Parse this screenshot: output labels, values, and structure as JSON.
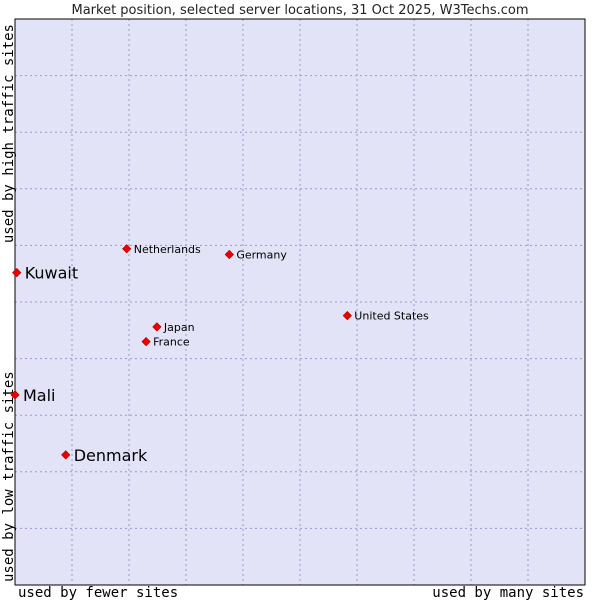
{
  "chart_data": {
    "type": "scatter",
    "title": "Market position, selected server locations, 31 Oct 2025, W3Techs.com",
    "xlabel_left": "used by fewer sites",
    "xlabel_right": "used by many sites",
    "ylabel_bottom": "used by low traffic sites",
    "ylabel_top": "used by high traffic sites",
    "xlim": [
      0,
      100
    ],
    "ylim": [
      0,
      100
    ],
    "grid": true,
    "colors": {
      "plot_bg": "#e3e3f8",
      "point": "#ee0000",
      "border": "#000000"
    },
    "points": [
      {
        "name": "Netherlands",
        "x": 19.6,
        "y": 59.4,
        "emphasis": false
      },
      {
        "name": "Germany",
        "x": 37.6,
        "y": 58.4,
        "emphasis": false
      },
      {
        "name": "Kuwait",
        "x": 0.3,
        "y": 55.2,
        "emphasis": true
      },
      {
        "name": "United States",
        "x": 58.3,
        "y": 47.6,
        "emphasis": false
      },
      {
        "name": "Japan",
        "x": 24.9,
        "y": 45.6,
        "emphasis": false
      },
      {
        "name": "France",
        "x": 23.0,
        "y": 43.0,
        "emphasis": false
      },
      {
        "name": "Mali",
        "x": 0.0,
        "y": 33.6,
        "emphasis": true
      },
      {
        "name": "Denmark",
        "x": 8.9,
        "y": 23.0,
        "emphasis": true
      }
    ]
  }
}
